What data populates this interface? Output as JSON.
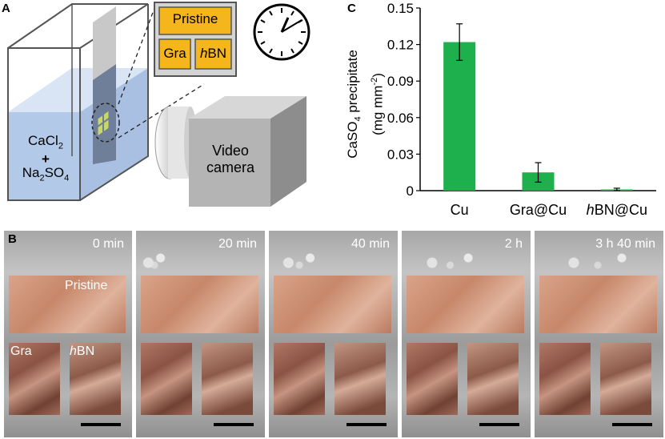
{
  "figure": {
    "panel_a": {
      "letter": "A",
      "beaker_label_line1": "CaCl",
      "beaker_label_line1_sub": "2",
      "beaker_label_plus": "+",
      "beaker_label_line2": "Na",
      "beaker_label_line2_sub": "2",
      "beaker_label_line2b": "SO",
      "beaker_label_line2b_sub": "4",
      "inset_top": "Pristine",
      "inset_left": "Gra",
      "inset_right_italic": "h",
      "inset_right": "BN",
      "camera_line1": "Video",
      "camera_line2": "camera"
    },
    "panel_b": {
      "letter": "B",
      "times": [
        "0 min",
        "20 min",
        "40 min",
        "2 h",
        "3 h 40 min"
      ],
      "label_pristine": "Pristine",
      "label_gra": "Gra",
      "label_hbn_italic": "h",
      "label_hbn": "BN"
    },
    "panel_c": {
      "letter": "C"
    },
    "chart_data": {
      "type": "bar",
      "categories": [
        "Cu",
        "Gra@Cu",
        "hBN@Cu"
      ],
      "category_italic_prefix": [
        "",
        "",
        "h"
      ],
      "category_text": [
        "Cu",
        "Gra@Cu",
        "BN@Cu"
      ],
      "values": [
        0.122,
        0.015,
        0.001
      ],
      "errors": [
        0.015,
        0.008,
        0.001
      ],
      "ylim": [
        0,
        0.15
      ],
      "yticks": [
        "0",
        "0.03",
        "0.06",
        "0.09",
        "0.12",
        "0.15"
      ],
      "ytick_values": [
        0,
        0.03,
        0.06,
        0.09,
        0.12,
        0.15
      ],
      "ylabel_line1": "CaSO",
      "ylabel_line1_sub": "4",
      "ylabel_line1_end": " precipitate",
      "ylabel_line2": "(mg mm",
      "ylabel_line2_sup": "-2",
      "ylabel_line2_end": ")",
      "bar_color": "#1db04c"
    }
  }
}
